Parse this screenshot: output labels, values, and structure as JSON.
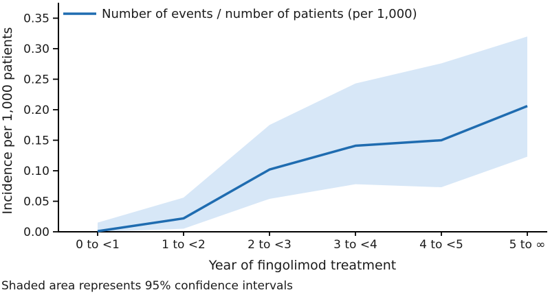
{
  "chart_data": {
    "type": "line",
    "title": "",
    "categories": [
      "0 to <1",
      "1 to <2",
      "2 to <3",
      "3 to <4",
      "4 to <5",
      "5 to ∞"
    ],
    "series": [
      {
        "name": "Number of events / number of patients (per 1,000)",
        "values": [
          0.001,
          0.022,
          0.102,
          0.141,
          0.15,
          0.206
        ]
      }
    ],
    "ci_upper": [
      0.015,
      0.056,
      0.175,
      0.243,
      0.276,
      0.32
    ],
    "ci_lower": [
      0.0,
      0.005,
      0.054,
      0.078,
      0.073,
      0.123
    ],
    "xlabel": "Year of fingolimod treatment",
    "ylabel": "Incidence per 1,000 patients",
    "ylim": [
      0,
      0.35
    ],
    "ytick_step": 0.05,
    "ytick_labels": [
      "0.00",
      "0.05",
      "0.10",
      "0.15",
      "0.20",
      "0.25",
      "0.30",
      "0.35"
    ],
    "legend": {
      "position": "top-left"
    },
    "grid": false,
    "footnote": "Shaded area represents 95% confidence intervals",
    "colors": {
      "line": "#1f6cb0",
      "band": "#d7e7f7",
      "axis": "#000000",
      "text": "#1a1a1a"
    }
  }
}
